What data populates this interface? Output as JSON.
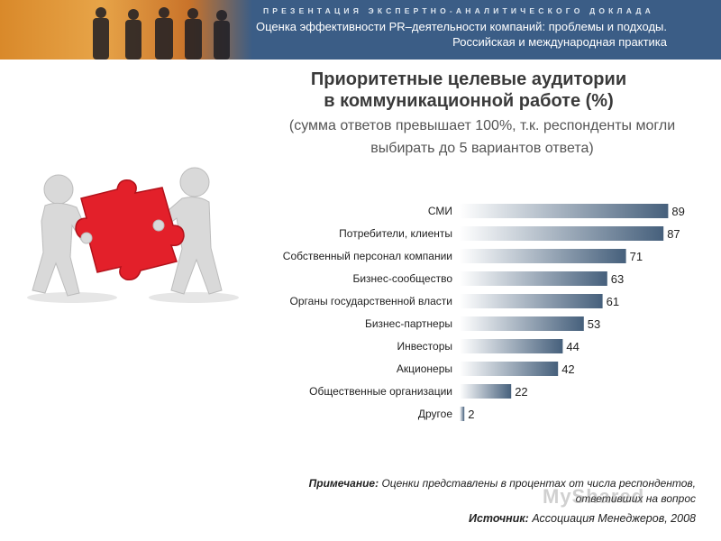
{
  "header": {
    "kicker": "ПРЕЗЕНТАЦИЯ ЭКСПЕРТНО-АНАЛИТИЧЕСКОГО ДОКЛАДА",
    "subtitle_line1": "Оценка эффективности PR–деятельности компаний: проблемы и подходы.",
    "subtitle_line2": "Российская и международная практика"
  },
  "chart_data": {
    "type": "bar",
    "orientation": "horizontal",
    "title_line1": "Приоритетные целевые аудитории",
    "title_line2": "в коммуникационной работе (%)",
    "subtitle_line1": "(сумма ответов превышает 100%, т.к. респонденты могли",
    "subtitle_line2": "выбирать до 5 вариантов ответа)",
    "categories": [
      "СМИ",
      "Потребители, клиенты",
      "Собственный персонал компании",
      "Бизнес-сообщество",
      "Органы государственной власти",
      "Бизнес-партнеры",
      "Инвесторы",
      "Акционеры",
      "Общественные организации",
      "Другое"
    ],
    "values": [
      89,
      87,
      71,
      63,
      61,
      53,
      44,
      42,
      22,
      2
    ],
    "xlim": [
      0,
      100
    ],
    "grid": false,
    "bar_color_start": "#ffffff",
    "bar_color_end": "#46607c"
  },
  "footer": {
    "note_label": "Примечание:",
    "note_text": "Оценки представлены в процентах от числа респондентов,",
    "note_text2": "ответивших на вопрос",
    "source_label": "Источник:",
    "source_text": "Ассоциация Менеджеров, 2008"
  },
  "watermark": "MyShared"
}
